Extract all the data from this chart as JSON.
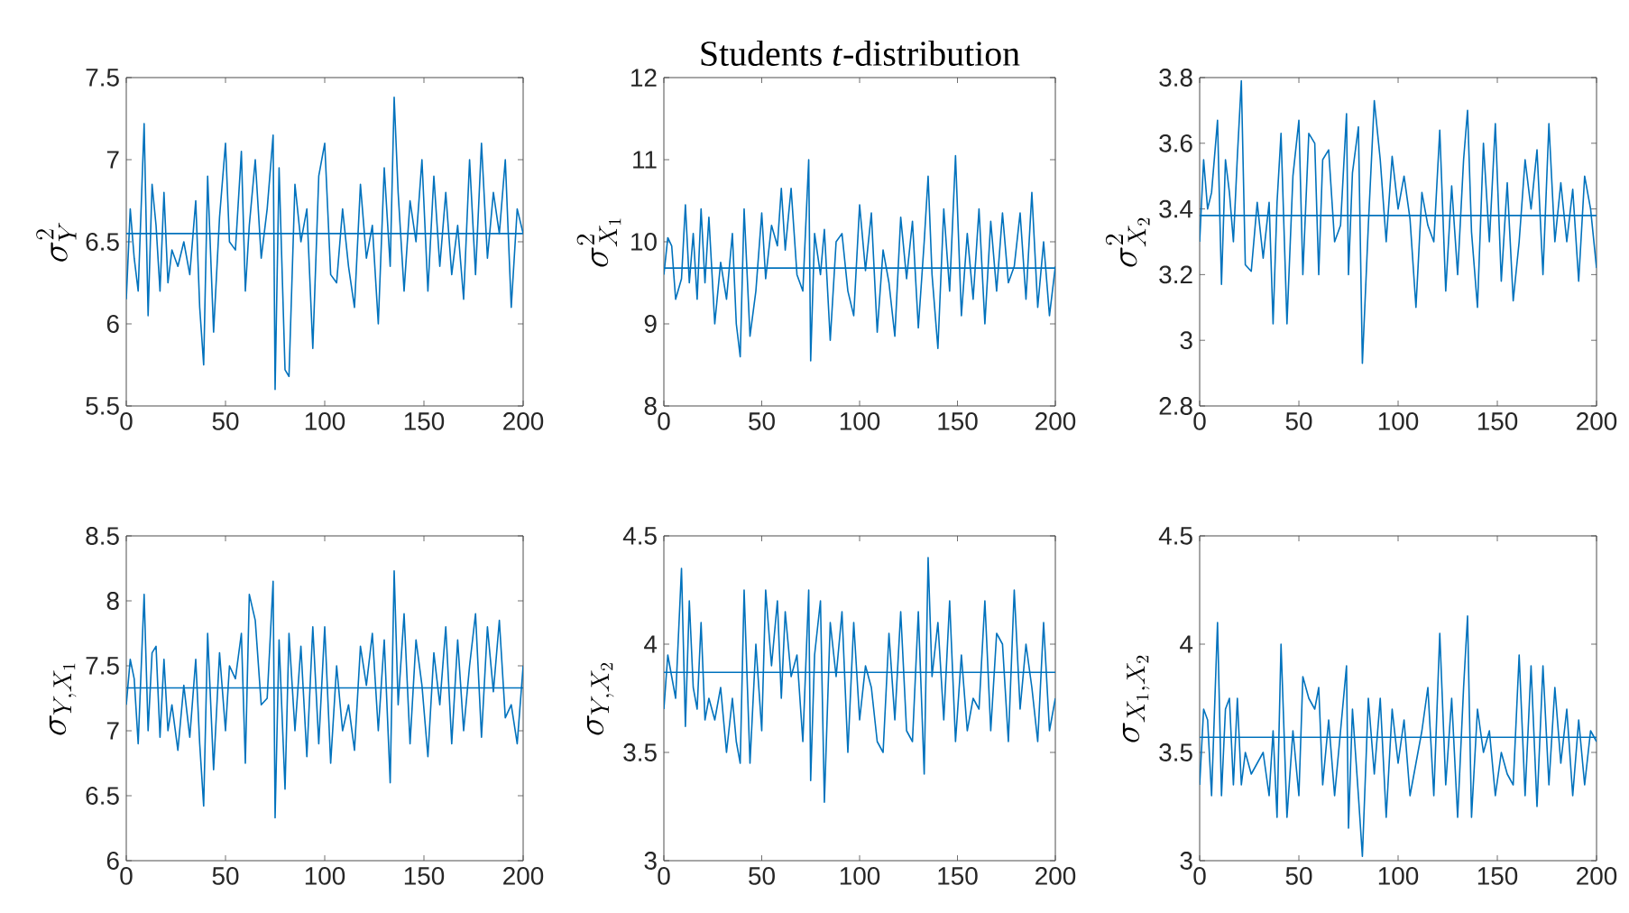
{
  "chart_data": [
    {
      "type": "line",
      "ylabel": "\\sigma^2_Y",
      "x": [
        0,
        2,
        4,
        6,
        9,
        11,
        13,
        15,
        17,
        19,
        21,
        23,
        26,
        29,
        32,
        35,
        37,
        39,
        41,
        44,
        47,
        50,
        52,
        55,
        58,
        60,
        62,
        65,
        68,
        71,
        74,
        75,
        77,
        80,
        82,
        85,
        88,
        91,
        94,
        97,
        100,
        103,
        106,
        109,
        112,
        115,
        118,
        121,
        124,
        127,
        130,
        133,
        135,
        137,
        140,
        143,
        146,
        149,
        152,
        155,
        158,
        161,
        164,
        167,
        170,
        173,
        176,
        179,
        182,
        185,
        188,
        191,
        194,
        197,
        200
      ],
      "series": [
        {
          "color": "#0072bd",
          "values": [
            6.15,
            6.7,
            6.4,
            6.2,
            7.22,
            6.05,
            6.85,
            6.6,
            6.2,
            6.8,
            6.25,
            6.45,
            6.35,
            6.5,
            6.3,
            6.75,
            6.1,
            5.75,
            6.9,
            5.95,
            6.65,
            7.1,
            6.5,
            6.45,
            7.05,
            6.2,
            6.6,
            7.0,
            6.4,
            6.7,
            7.15,
            5.6,
            6.95,
            5.72,
            5.68,
            6.85,
            6.5,
            6.7,
            5.85,
            6.9,
            7.1,
            6.3,
            6.25,
            6.7,
            6.35,
            6.1,
            6.85,
            6.4,
            6.6,
            6.0,
            6.95,
            6.35,
            7.38,
            6.8,
            6.2,
            6.75,
            6.5,
            7.0,
            6.2,
            6.9,
            6.35,
            6.8,
            6.3,
            6.6,
            6.15,
            7.0,
            6.3,
            7.1,
            6.4,
            6.8,
            6.55,
            7.0,
            6.1,
            6.7,
            6.55
          ]
        }
      ],
      "ref_lines": [
        {
          "axis": "y",
          "value": 6.55,
          "color": "#0072bd"
        }
      ],
      "xlim": [
        0,
        200
      ],
      "xticks": [
        0,
        50,
        100,
        150,
        200
      ],
      "ylim": [
        5.5,
        7.5
      ],
      "yticks": [
        5.5,
        6,
        6.5,
        7,
        7.5
      ]
    },
    {
      "type": "line",
      "title": "Students *t*-distribution",
      "ylabel": "\\sigma^2_{X_1}",
      "x": [
        0,
        2,
        4,
        6,
        9,
        11,
        13,
        15,
        17,
        19,
        21,
        23,
        26,
        29,
        32,
        35,
        37,
        39,
        41,
        44,
        47,
        50,
        52,
        55,
        58,
        60,
        62,
        65,
        68,
        71,
        74,
        75,
        77,
        80,
        82,
        85,
        88,
        91,
        94,
        97,
        100,
        103,
        106,
        109,
        112,
        115,
        118,
        121,
        124,
        127,
        130,
        133,
        135,
        137,
        140,
        143,
        146,
        149,
        152,
        155,
        158,
        161,
        164,
        167,
        170,
        173,
        176,
        179,
        182,
        185,
        188,
        191,
        194,
        197,
        200
      ],
      "series": [
        {
          "color": "#0072bd",
          "values": [
            9.6,
            10.05,
            9.95,
            9.3,
            9.55,
            10.45,
            9.5,
            10.1,
            9.3,
            10.4,
            9.5,
            10.3,
            9.0,
            9.75,
            9.3,
            10.1,
            9.0,
            8.6,
            10.4,
            8.85,
            9.4,
            10.35,
            9.55,
            10.2,
            9.95,
            10.65,
            9.9,
            10.65,
            9.6,
            9.4,
            11.0,
            8.55,
            10.1,
            9.6,
            10.15,
            8.8,
            10.0,
            10.1,
            9.4,
            9.1,
            10.45,
            9.65,
            10.35,
            8.9,
            9.9,
            9.5,
            8.85,
            10.3,
            9.55,
            10.25,
            8.95,
            10.0,
            10.8,
            9.6,
            8.7,
            10.4,
            9.4,
            11.05,
            9.1,
            10.1,
            9.3,
            10.4,
            9.0,
            10.25,
            9.4,
            10.35,
            9.5,
            9.7,
            10.35,
            9.3,
            10.6,
            9.2,
            10.0,
            9.1,
            9.7
          ]
        }
      ],
      "ref_lines": [
        {
          "axis": "y",
          "value": 9.68,
          "color": "#0072bd"
        }
      ],
      "xlim": [
        0,
        200
      ],
      "xticks": [
        0,
        50,
        100,
        150,
        200
      ],
      "ylim": [
        8,
        12
      ],
      "yticks": [
        8,
        9,
        10,
        11,
        12
      ]
    },
    {
      "type": "line",
      "ylabel": "\\sigma^2_{X_2}",
      "x": [
        0,
        2,
        4,
        6,
        9,
        11,
        13,
        15,
        17,
        19,
        21,
        23,
        26,
        29,
        32,
        35,
        37,
        39,
        41,
        44,
        47,
        50,
        52,
        55,
        58,
        60,
        62,
        65,
        68,
        71,
        74,
        75,
        77,
        80,
        82,
        85,
        88,
        91,
        94,
        97,
        100,
        103,
        106,
        109,
        112,
        115,
        118,
        121,
        124,
        127,
        130,
        133,
        135,
        137,
        140,
        143,
        146,
        149,
        152,
        155,
        158,
        161,
        164,
        167,
        170,
        173,
        176,
        179,
        182,
        185,
        188,
        191,
        194,
        197,
        200
      ],
      "series": [
        {
          "color": "#0072bd",
          "values": [
            3.3,
            3.55,
            3.4,
            3.45,
            3.67,
            3.17,
            3.55,
            3.45,
            3.3,
            3.56,
            3.79,
            3.23,
            3.21,
            3.42,
            3.25,
            3.42,
            3.05,
            3.42,
            3.63,
            3.05,
            3.5,
            3.67,
            3.2,
            3.63,
            3.6,
            3.2,
            3.55,
            3.58,
            3.3,
            3.35,
            3.69,
            3.2,
            3.51,
            3.65,
            2.93,
            3.35,
            3.73,
            3.55,
            3.3,
            3.56,
            3.4,
            3.5,
            3.37,
            3.1,
            3.45,
            3.35,
            3.3,
            3.64,
            3.15,
            3.47,
            3.2,
            3.55,
            3.7,
            3.33,
            3.1,
            3.6,
            3.3,
            3.66,
            3.18,
            3.48,
            3.12,
            3.3,
            3.55,
            3.4,
            3.58,
            3.2,
            3.66,
            3.3,
            3.48,
            3.3,
            3.46,
            3.18,
            3.5,
            3.4,
            3.22
          ]
        }
      ],
      "ref_lines": [
        {
          "axis": "y",
          "value": 3.38,
          "color": "#0072bd"
        }
      ],
      "xlim": [
        0,
        200
      ],
      "xticks": [
        0,
        50,
        100,
        150,
        200
      ],
      "ylim": [
        2.8,
        3.8
      ],
      "yticks": [
        2.8,
        3,
        3.2,
        3.4,
        3.6,
        3.8
      ]
    },
    {
      "type": "line",
      "ylabel": "\\sigma_{Y,X_1}",
      "x": [
        0,
        2,
        4,
        6,
        9,
        11,
        13,
        15,
        17,
        19,
        21,
        23,
        26,
        29,
        32,
        35,
        37,
        39,
        41,
        44,
        47,
        50,
        52,
        55,
        58,
        60,
        62,
        65,
        68,
        71,
        74,
        75,
        77,
        80,
        82,
        85,
        88,
        91,
        94,
        97,
        100,
        103,
        106,
        109,
        112,
        115,
        118,
        121,
        124,
        127,
        130,
        133,
        135,
        137,
        140,
        143,
        146,
        149,
        152,
        155,
        158,
        161,
        164,
        167,
        170,
        173,
        176,
        179,
        182,
        185,
        188,
        191,
        194,
        197,
        200
      ],
      "series": [
        {
          "color": "#0072bd",
          "values": [
            7.2,
            7.55,
            7.4,
            6.9,
            8.05,
            7.0,
            7.6,
            7.65,
            6.95,
            7.55,
            7.0,
            7.2,
            6.85,
            7.35,
            6.95,
            7.55,
            6.9,
            6.42,
            7.75,
            6.7,
            7.6,
            7.0,
            7.5,
            7.4,
            7.75,
            6.75,
            8.05,
            7.85,
            7.2,
            7.25,
            8.15,
            6.33,
            7.7,
            6.55,
            7.75,
            7.0,
            7.65,
            6.8,
            7.8,
            6.9,
            7.8,
            6.75,
            7.5,
            7.0,
            7.2,
            6.85,
            7.65,
            7.35,
            7.75,
            7.0,
            7.7,
            6.6,
            8.23,
            7.2,
            7.9,
            6.9,
            7.7,
            7.35,
            6.8,
            7.6,
            7.2,
            7.8,
            6.9,
            7.7,
            7.0,
            7.5,
            7.9,
            6.95,
            7.8,
            7.3,
            7.85,
            7.1,
            7.2,
            6.9,
            7.5
          ]
        }
      ],
      "ref_lines": [
        {
          "axis": "y",
          "value": 7.33,
          "color": "#0072bd"
        }
      ],
      "xlim": [
        0,
        200
      ],
      "xticks": [
        0,
        50,
        100,
        150,
        200
      ],
      "ylim": [
        6,
        8.5
      ],
      "yticks": [
        6,
        6.5,
        7,
        7.5,
        8,
        8.5
      ]
    },
    {
      "type": "line",
      "ylabel": "\\sigma_{Y,X_2}",
      "x": [
        0,
        2,
        4,
        6,
        9,
        11,
        13,
        15,
        17,
        19,
        21,
        23,
        26,
        29,
        32,
        35,
        37,
        39,
        41,
        44,
        47,
        50,
        52,
        55,
        58,
        60,
        62,
        65,
        68,
        71,
        74,
        75,
        77,
        80,
        82,
        85,
        88,
        91,
        94,
        97,
        100,
        103,
        106,
        109,
        112,
        115,
        118,
        121,
        124,
        127,
        130,
        133,
        135,
        137,
        140,
        143,
        146,
        149,
        152,
        155,
        158,
        161,
        164,
        167,
        170,
        173,
        176,
        179,
        182,
        185,
        188,
        191,
        194,
        197,
        200
      ],
      "series": [
        {
          "color": "#0072bd",
          "values": [
            3.7,
            3.95,
            3.85,
            3.75,
            4.35,
            3.62,
            4.2,
            3.8,
            3.7,
            4.1,
            3.65,
            3.75,
            3.65,
            3.8,
            3.5,
            3.75,
            3.55,
            3.45,
            4.25,
            3.45,
            4.0,
            3.6,
            4.25,
            3.9,
            4.2,
            3.75,
            4.15,
            3.85,
            3.95,
            3.55,
            4.25,
            3.37,
            3.95,
            4.2,
            3.27,
            4.1,
            3.85,
            4.15,
            3.5,
            4.1,
            3.65,
            3.9,
            3.8,
            3.55,
            3.5,
            4.05,
            3.65,
            4.15,
            3.6,
            3.55,
            4.15,
            3.4,
            4.4,
            3.85,
            4.1,
            3.65,
            4.2,
            3.55,
            3.95,
            3.6,
            3.75,
            3.7,
            4.2,
            3.6,
            4.05,
            4.0,
            3.55,
            4.25,
            3.7,
            4.0,
            3.8,
            3.55,
            4.1,
            3.6,
            3.75
          ]
        }
      ],
      "ref_lines": [
        {
          "axis": "y",
          "value": 3.87,
          "color": "#0072bd"
        }
      ],
      "xlim": [
        0,
        200
      ],
      "xticks": [
        0,
        50,
        100,
        150,
        200
      ],
      "ylim": [
        3,
        4.5
      ],
      "yticks": [
        3,
        3.5,
        4,
        4.5
      ]
    },
    {
      "type": "line",
      "ylabel": "\\sigma_{X_1,X_2}",
      "x": [
        0,
        2,
        4,
        6,
        9,
        11,
        13,
        15,
        17,
        19,
        21,
        23,
        26,
        29,
        32,
        35,
        37,
        39,
        41,
        44,
        47,
        50,
        52,
        55,
        58,
        60,
        62,
        65,
        68,
        71,
        74,
        75,
        77,
        80,
        82,
        85,
        88,
        91,
        94,
        97,
        100,
        103,
        106,
        109,
        112,
        115,
        118,
        121,
        124,
        127,
        130,
        133,
        135,
        137,
        140,
        143,
        146,
        149,
        152,
        155,
        158,
        161,
        164,
        167,
        170,
        173,
        176,
        179,
        182,
        185,
        188,
        191,
        194,
        197,
        200
      ],
      "series": [
        {
          "color": "#0072bd",
          "values": [
            3.35,
            3.7,
            3.65,
            3.3,
            4.1,
            3.3,
            3.7,
            3.75,
            3.35,
            3.75,
            3.35,
            3.5,
            3.4,
            3.45,
            3.5,
            3.3,
            3.6,
            3.2,
            4.0,
            3.2,
            3.6,
            3.3,
            3.85,
            3.75,
            3.7,
            3.8,
            3.35,
            3.65,
            3.3,
            3.6,
            3.9,
            3.15,
            3.7,
            3.3,
            3.02,
            3.75,
            3.4,
            3.75,
            3.2,
            3.7,
            3.45,
            3.65,
            3.3,
            3.45,
            3.6,
            3.8,
            3.3,
            4.05,
            3.35,
            3.75,
            3.2,
            3.8,
            4.13,
            3.2,
            3.7,
            3.5,
            3.6,
            3.3,
            3.5,
            3.4,
            3.35,
            3.95,
            3.3,
            3.9,
            3.25,
            3.9,
            3.35,
            3.8,
            3.45,
            3.7,
            3.3,
            3.65,
            3.35,
            3.6,
            3.55
          ]
        }
      ],
      "ref_lines": [
        {
          "axis": "y",
          "value": 3.57,
          "color": "#0072bd"
        }
      ],
      "xlim": [
        0,
        200
      ],
      "xticks": [
        0,
        50,
        100,
        150,
        200
      ],
      "ylim": [
        3,
        4.5
      ],
      "yticks": [
        3,
        3.5,
        4,
        4.5
      ]
    }
  ]
}
